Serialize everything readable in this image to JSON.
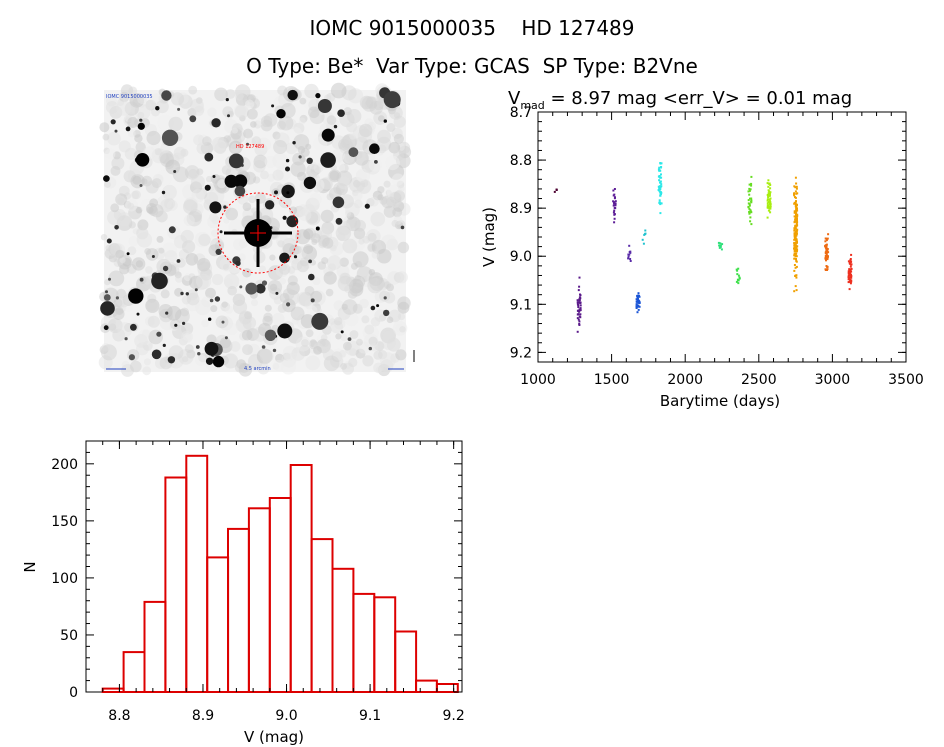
{
  "header": {
    "line1": "IOMC 9015000035    HD 127489",
    "line2": "O Type: Be*  Var Type: GCAS  SP Type: B2Vne"
  },
  "finder": {
    "label_top_left": "IOMC 9015000035",
    "label_target": "HD 127489",
    "label_bottom": "4.5 arcmin",
    "ring_color": "#ff0000"
  },
  "lightcurve_header": {
    "v": "V",
    "sub": "mad",
    "rest": " = 8.97 mag <err_V> = 0.01 mag"
  },
  "chart_data": [
    {
      "type": "scatter",
      "title": "",
      "xlabel": "Barytime (days)",
      "ylabel": "V (mag)",
      "xlim": [
        1000,
        3500
      ],
      "ylim": [
        9.22,
        8.7
      ],
      "y_inverted": true,
      "xticks": [
        1000,
        1500,
        2000,
        2500,
        3000,
        3500
      ],
      "yticks": [
        8.7,
        8.8,
        8.9,
        9.0,
        9.1,
        9.2
      ],
      "ytick_labels": [
        "8.7",
        "8.8",
        "8.9",
        "9.0",
        "9.1",
        "9.2"
      ],
      "clusters": [
        {
          "x": 1120,
          "ymin": 8.85,
          "ymax": 8.87,
          "n": 4,
          "color": "#4b0030"
        },
        {
          "x": 1280,
          "ymin": 9.02,
          "ymax": 9.18,
          "n": 40,
          "color": "#5a1a8a"
        },
        {
          "x": 1520,
          "ymin": 8.84,
          "ymax": 8.94,
          "n": 25,
          "color": "#5c1d96"
        },
        {
          "x": 1620,
          "ymin": 8.97,
          "ymax": 9.02,
          "n": 10,
          "color": "#5a2ca8"
        },
        {
          "x": 1680,
          "ymin": 9.07,
          "ymax": 9.12,
          "n": 35,
          "color": "#1b55d6"
        },
        {
          "x": 1720,
          "ymin": 8.94,
          "ymax": 8.98,
          "n": 6,
          "color": "#22c3cf"
        },
        {
          "x": 1830,
          "ymin": 8.78,
          "ymax": 8.93,
          "n": 45,
          "color": "#2ce8e8"
        },
        {
          "x": 2240,
          "ymin": 8.96,
          "ymax": 9.0,
          "n": 12,
          "color": "#2ee07a"
        },
        {
          "x": 2360,
          "ymin": 9.01,
          "ymax": 9.07,
          "n": 12,
          "color": "#3de04a"
        },
        {
          "x": 2440,
          "ymin": 8.83,
          "ymax": 8.95,
          "n": 30,
          "color": "#66dd22"
        },
        {
          "x": 2570,
          "ymin": 8.83,
          "ymax": 8.93,
          "n": 50,
          "color": "#a8ee10"
        },
        {
          "x": 2750,
          "ymin": 8.8,
          "ymax": 9.1,
          "n": 160,
          "color": "#f0a000"
        },
        {
          "x": 2960,
          "ymin": 8.94,
          "ymax": 9.05,
          "n": 45,
          "color": "#ee6a12"
        },
        {
          "x": 3120,
          "ymin": 8.99,
          "ymax": 9.08,
          "n": 55,
          "color": "#ee3020"
        }
      ]
    },
    {
      "type": "bar",
      "title": "",
      "xlabel": "V (mag)",
      "ylabel": "N",
      "xlim": [
        8.76,
        9.21
      ],
      "ylim": [
        0,
        220
      ],
      "bin_width": 0.025,
      "bin_starts": [
        8.78,
        8.805,
        8.83,
        8.855,
        8.88,
        8.905,
        8.93,
        8.955,
        8.98,
        9.005,
        9.03,
        9.055,
        9.08,
        9.105,
        9.13,
        9.155,
        9.18
      ],
      "values": [
        3,
        35,
        79,
        188,
        207,
        118,
        143,
        161,
        170,
        199,
        134,
        108,
        86,
        83,
        53,
        10,
        7
      ],
      "xticks": [
        8.8,
        8.9,
        9.0,
        9.1,
        9.2
      ],
      "xtick_labels": [
        "8.8",
        "8.9",
        "9.0",
        "9.1",
        "9.2"
      ],
      "yticks": [
        0,
        50,
        100,
        150,
        200
      ],
      "ytick_labels": [
        "0",
        "50",
        "100",
        "150",
        "200"
      ],
      "bar_color": "#dd0000"
    }
  ]
}
